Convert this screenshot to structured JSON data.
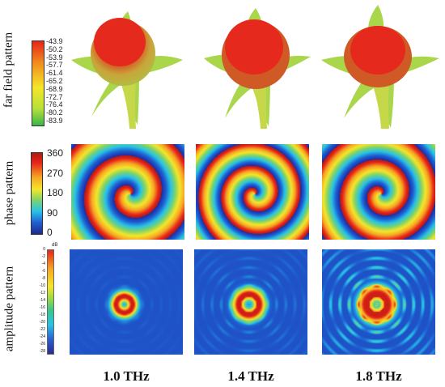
{
  "rows": {
    "far_field": {
      "label": "far field pattern",
      "ticks": [
        "-43.9",
        "-50.2",
        "-53.9",
        "-57.7",
        "-61.4",
        "-65.2",
        "-68.9",
        "-72.7",
        "-76.4",
        "-80.2",
        "-83.9"
      ]
    },
    "phase": {
      "label": "phase pattern",
      "ticks": [
        "360",
        "270",
        "180",
        "90",
        "0"
      ]
    },
    "amplitude": {
      "label": "amplitude pattern",
      "unit": "dB",
      "ticks": [
        "0",
        "-2",
        "-4",
        "-6",
        "-8",
        "-10",
        "-12",
        "-14",
        "-16",
        "-18",
        "-20",
        "-22",
        "-24",
        "-26",
        "-28"
      ]
    }
  },
  "frequencies": [
    "1.0 THz",
    "1.4 THz",
    "1.8 THz"
  ],
  "colors": {
    "red": "#e8231b",
    "orange": "#f5a623",
    "yellow": "#f5e62a",
    "green": "#3cc48a",
    "cyan": "#27c3e8",
    "blue": "#1a2fa8"
  }
}
